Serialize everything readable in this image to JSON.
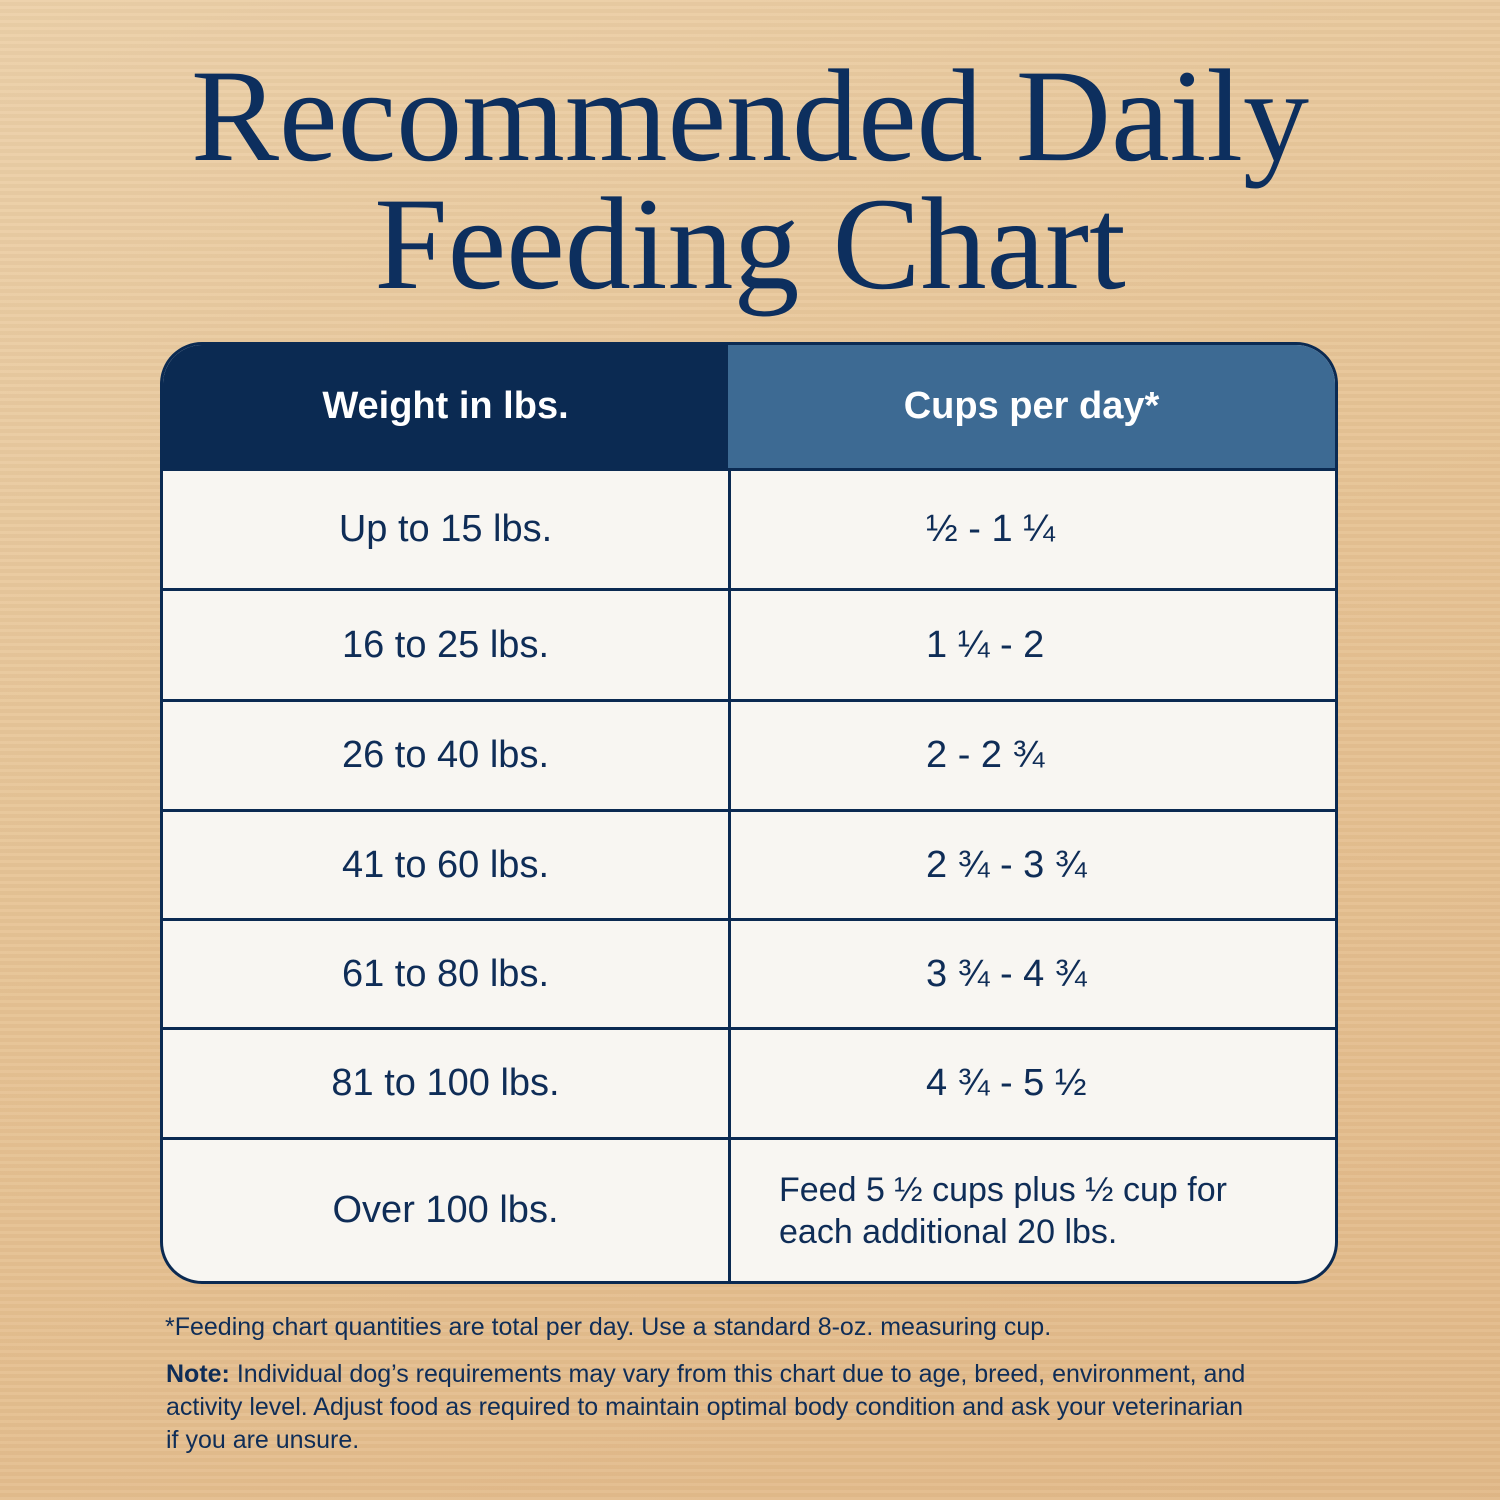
{
  "header": {
    "title_lines": [
      "Recommended Daily",
      "Feeding Chart"
    ]
  },
  "table": {
    "columns": [
      "Weight in lbs.",
      "Cups per day*"
    ],
    "rows": [
      [
        "Up to 15 lbs.",
        "½ - 1 ¼"
      ],
      [
        "16 to 25 lbs.",
        "1 ¼ - 2"
      ],
      [
        "26 to 40 lbs.",
        "2 - 2 ¾"
      ],
      [
        "41 to 60 lbs.",
        "2 ¾ - 3 ¾"
      ],
      [
        "61 to 80 lbs.",
        "3 ¾ - 4 ¾"
      ],
      [
        "81 to 100 lbs.",
        "4 ¾ - 5 ½"
      ],
      [
        "Over 100 lbs.",
        "Feed 5 ½ cups plus ½ cup for each additional 20 lbs."
      ]
    ]
  },
  "footnote": "*Feeding chart quantities are total per day. Use a standard 8-oz. measuring cup.",
  "note": {
    "label": "Note:",
    "text": "Individual dog’s requirements may vary from this chart due to age, breed, environment, and activity level. Adjust food as required to maintain optimal body condition and ask your veterinarian if you are unsure."
  }
}
